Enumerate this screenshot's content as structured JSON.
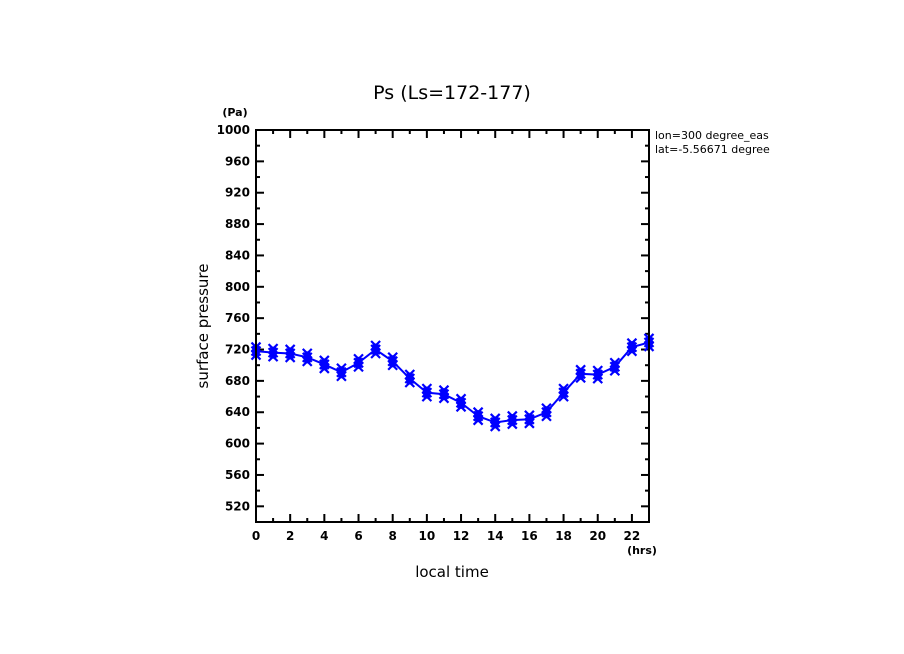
{
  "chart_data": {
    "type": "line",
    "title": "Ps (Ls=172-177)",
    "xlabel": "local time",
    "ylabel": "surface pressure",
    "x_unit": "(hrs)",
    "y_unit": "(Pa)",
    "xlim": [
      0,
      23
    ],
    "ylim": [
      500,
      1000
    ],
    "x_ticks": [
      0,
      2,
      4,
      6,
      8,
      10,
      12,
      14,
      16,
      18,
      20,
      22
    ],
    "x_minor_step": 1,
    "y_ticks": [
      520,
      560,
      600,
      640,
      680,
      720,
      760,
      800,
      840,
      880,
      920,
      960,
      1000
    ],
    "y_minor_step": 20,
    "grid": false,
    "annotations": [
      "lon=300 degree_eas",
      "lat=-5.56671 degree"
    ],
    "series": [
      {
        "name": "Ps",
        "color": "#0000ff",
        "marker": "x",
        "x": [
          0,
          1,
          2,
          3,
          4,
          5,
          6,
          7,
          8,
          9,
          10,
          11,
          12,
          13,
          14,
          15,
          16,
          17,
          18,
          19,
          20,
          21,
          22,
          23
        ],
        "values": [
          718,
          716,
          715,
          710,
          701,
          691,
          703,
          720,
          705,
          683,
          665,
          663,
          652,
          635,
          627,
          630,
          631,
          640,
          665,
          689,
          688,
          698,
          723,
          729
        ]
      }
    ]
  }
}
